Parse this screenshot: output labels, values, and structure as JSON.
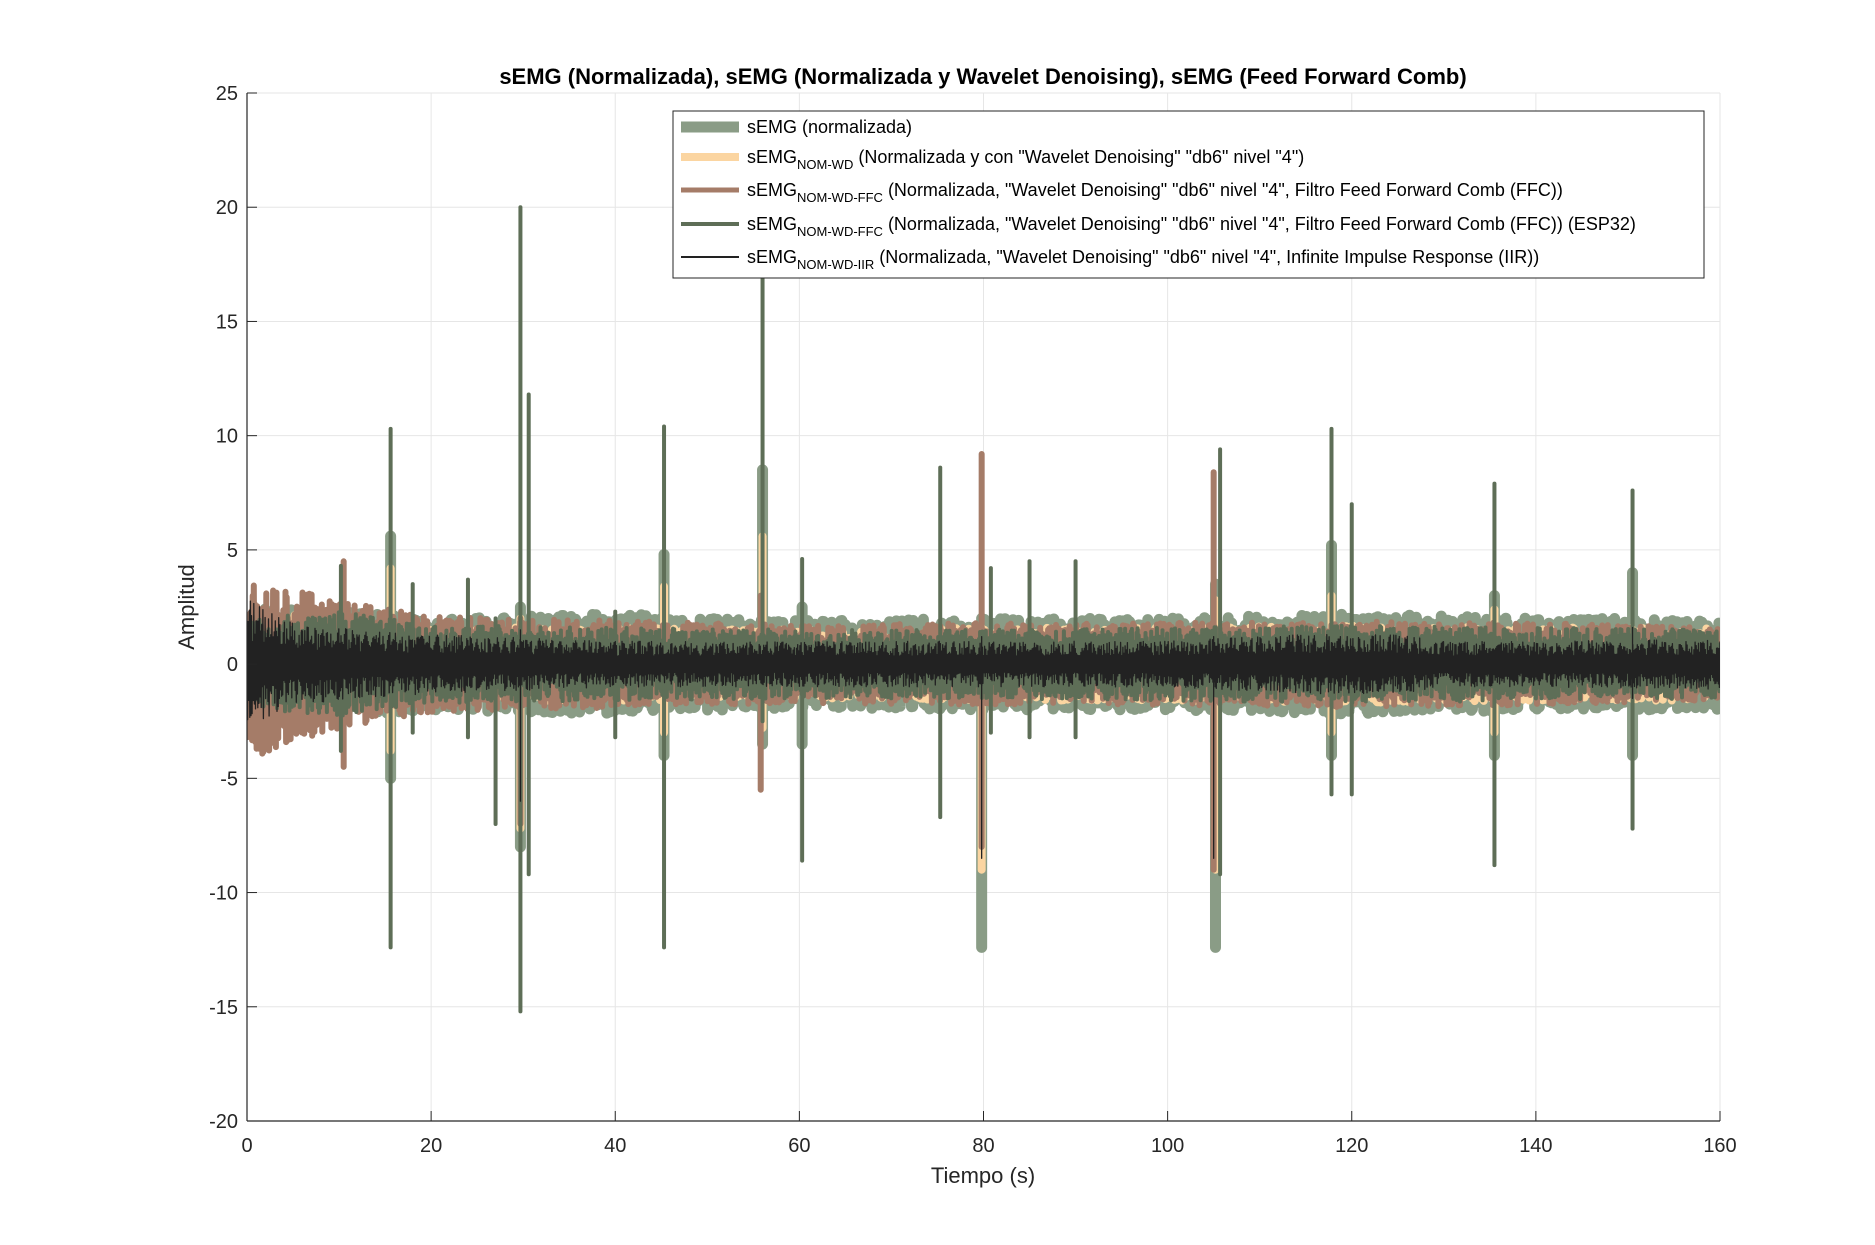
{
  "chart_data": {
    "type": "line",
    "title": "sEMG (Normalizada), sEMG (Normalizada y Wavelet Denoising), sEMG (Feed Forward Comb)",
    "xlabel": "Tiempo (s)",
    "ylabel": "Amplitud",
    "xlim": [
      0,
      160
    ],
    "ylim": [
      -20,
      25
    ],
    "xticks": [
      0,
      20,
      40,
      60,
      80,
      100,
      120,
      140,
      160
    ],
    "yticks": [
      -20,
      -15,
      -10,
      -5,
      0,
      5,
      10,
      15,
      20,
      25
    ],
    "xtick_labels": [
      "0",
      "20",
      "40",
      "60",
      "80",
      "100",
      "120",
      "140",
      "160"
    ],
    "ytick_labels": [
      "-20",
      "-15",
      "-10",
      "-5",
      "0",
      "5",
      "10",
      "15",
      "20",
      "25"
    ],
    "grid": true,
    "legend_position": "top-right",
    "series": [
      {
        "name_main": "sEMG",
        "name_sub": "",
        "name_rest": " (normalizada)",
        "color": "#8a9c86",
        "envelope": [
          [
            0,
            2.5
          ],
          [
            10,
            2.3
          ],
          [
            20,
            2.0
          ],
          [
            40,
            2.2
          ],
          [
            60,
            1.9
          ],
          [
            80,
            2.0
          ],
          [
            100,
            2.0
          ],
          [
            120,
            2.2
          ],
          [
            140,
            2.0
          ],
          [
            160,
            2.0
          ]
        ],
        "spikes": [
          [
            15.6,
            5.6,
            -5.0
          ],
          [
            29.7,
            2.5,
            -8.0
          ],
          [
            45.3,
            4.8,
            -4.0
          ],
          [
            56.0,
            8.5,
            -3.5
          ],
          [
            60.3,
            2.5,
            -3.5
          ],
          [
            79.8,
            2.0,
            -12.4
          ],
          [
            105.2,
            3.5,
            -12.4
          ],
          [
            117.8,
            5.2,
            -4.0
          ],
          [
            135.5,
            3.0,
            -4.0
          ],
          [
            150.5,
            4.0,
            -4.0
          ]
        ]
      },
      {
        "name_main": "sEMG",
        "name_sub": "NOM-WD",
        "name_rest": " (Normalizada y con \"Wavelet Denoising\" \"db6\" nivel \"4\")",
        "color": "#fbd5a1",
        "envelope": [
          [
            0,
            2.3
          ],
          [
            10,
            2.0
          ],
          [
            20,
            1.6
          ],
          [
            40,
            1.6
          ],
          [
            60,
            1.5
          ],
          [
            80,
            1.6
          ],
          [
            100,
            1.6
          ],
          [
            120,
            1.7
          ],
          [
            140,
            1.6
          ],
          [
            160,
            1.6
          ]
        ],
        "spikes": [
          [
            15.6,
            4.2,
            -3.8
          ],
          [
            29.7,
            2.0,
            -7.2
          ],
          [
            45.3,
            3.4,
            -3.0
          ],
          [
            56.0,
            5.6,
            -2.8
          ],
          [
            79.8,
            1.6,
            -9.0
          ],
          [
            105.2,
            2.8,
            -9.0
          ],
          [
            117.8,
            3.0,
            -3.0
          ],
          [
            135.5,
            2.4,
            -3.0
          ]
        ]
      },
      {
        "name_main": "sEMG",
        "name_sub": "NOM-WD-FFC",
        "name_rest": " (Normalizada, \"Wavelet Denoising\" \"db6\" nivel \"4\", Filtro Feed Forward Comb (FFC))",
        "color": "#a57c68",
        "envelope": [
          [
            0,
            4.2
          ],
          [
            5,
            3.4
          ],
          [
            10,
            2.8
          ],
          [
            20,
            2.1
          ],
          [
            40,
            1.9
          ],
          [
            60,
            1.7
          ],
          [
            80,
            1.8
          ],
          [
            100,
            1.8
          ],
          [
            120,
            1.9
          ],
          [
            140,
            1.8
          ],
          [
            160,
            1.6
          ]
        ],
        "spikes": [
          [
            10.5,
            4.5,
            -4.5
          ],
          [
            29.7,
            2.0,
            -7.0
          ],
          [
            55.8,
            3.0,
            -5.5
          ],
          [
            79.8,
            9.2,
            -8.0
          ],
          [
            105.0,
            8.4,
            -9.0
          ]
        ]
      },
      {
        "name_main": "sEMG",
        "name_sub": "NOM-WD-FFC",
        "name_rest": " (Normalizada, \"Wavelet Denoising\" \"db6\" nivel \"4\", Filtro Feed Forward Comb (FFC)) (ESP32)",
        "color": "#5e6e57",
        "envelope": [
          [
            0,
            2.0
          ],
          [
            10,
            2.3
          ],
          [
            20,
            1.7
          ],
          [
            40,
            1.6
          ],
          [
            60,
            1.5
          ],
          [
            80,
            1.5
          ],
          [
            100,
            1.6
          ],
          [
            120,
            1.7
          ],
          [
            140,
            1.6
          ],
          [
            160,
            1.5
          ]
        ],
        "spikes": [
          [
            10.2,
            4.3,
            -3.8
          ],
          [
            15.6,
            10.3,
            -12.4
          ],
          [
            18.0,
            3.5,
            -3.0
          ],
          [
            24.0,
            3.7,
            -3.2
          ],
          [
            27.0,
            2.0,
            -7.0
          ],
          [
            29.7,
            20.0,
            -15.2
          ],
          [
            30.6,
            11.8,
            -9.2
          ],
          [
            40.0,
            2.3,
            -3.2
          ],
          [
            45.3,
            10.4,
            -12.4
          ],
          [
            56.0,
            17.5,
            -2.5
          ],
          [
            60.3,
            4.6,
            -8.6
          ],
          [
            75.3,
            8.6,
            -6.7
          ],
          [
            80.8,
            4.2,
            -3.0
          ],
          [
            85.0,
            4.5,
            -3.2
          ],
          [
            90.0,
            4.5,
            -3.2
          ],
          [
            105.7,
            9.4,
            -9.2
          ],
          [
            117.8,
            10.3,
            -5.7
          ],
          [
            120.0,
            7.0,
            -5.7
          ],
          [
            135.5,
            7.9,
            -8.8
          ],
          [
            150.5,
            7.6,
            -7.2
          ]
        ]
      },
      {
        "name_main": "sEMG",
        "name_sub": "NOM-WD-IIR",
        "name_rest": " (Normalizada, \"Wavelet Denoising\" \"db6\" nivel \"4\", Infinite Impulse Response (IIR))",
        "color": "#222222",
        "envelope": [
          [
            0,
            3.0
          ],
          [
            1,
            2.6
          ],
          [
            5,
            1.8
          ],
          [
            10,
            1.6
          ],
          [
            20,
            1.3
          ],
          [
            40,
            1.0
          ],
          [
            60,
            1.0
          ],
          [
            80,
            1.0
          ],
          [
            100,
            1.0
          ],
          [
            115,
            1.3
          ],
          [
            125,
            1.3
          ],
          [
            130,
            1.0
          ],
          [
            140,
            1.0
          ],
          [
            160,
            1.1
          ]
        ],
        "spikes": [
          [
            29.7,
            1.5,
            -6.0
          ],
          [
            79.8,
            1.2,
            -8.5
          ],
          [
            105.0,
            1.2,
            -8.5
          ],
          [
            150.5,
            1.6,
            -1.5
          ]
        ]
      }
    ]
  }
}
